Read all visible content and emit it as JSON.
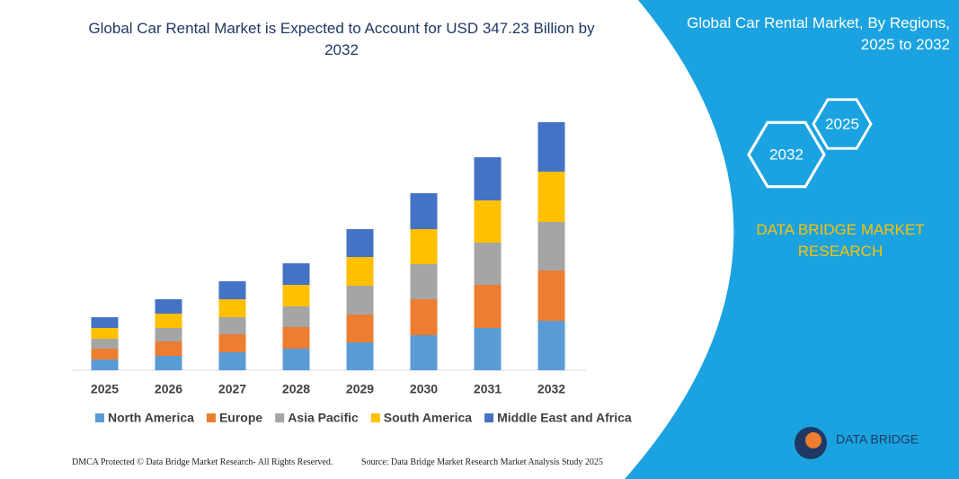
{
  "chart_data": {
    "type": "bar",
    "stacked": true,
    "title": "Global Car Rental Market is Expected to Account for USD 347.23 Billion by 2032",
    "categories": [
      "2025",
      "2026",
      "2027",
      "2028",
      "2029",
      "2030",
      "2031",
      "2032"
    ],
    "series": [
      {
        "name": "North America",
        "color": "#5b9bd5",
        "values": [
          12,
          16,
          20,
          24,
          31,
          39,
          47,
          55
        ]
      },
      {
        "name": "Europe",
        "color": "#ed7d31",
        "values": [
          12,
          16,
          20,
          24,
          31,
          40,
          48,
          56
        ]
      },
      {
        "name": "Asia Pacific",
        "color": "#a5a5a5",
        "values": [
          11,
          15,
          19,
          23,
          32,
          39,
          47,
          54
        ]
      },
      {
        "name": "South America",
        "color": "#ffc000",
        "values": [
          12,
          16,
          20,
          24,
          32,
          39,
          47,
          56
        ]
      },
      {
        "name": "Middle East and Africa",
        "color": "#4472c4",
        "values": [
          12,
          16,
          20,
          24,
          31,
          40,
          48,
          55
        ]
      }
    ],
    "legend": "bottom"
  },
  "side_panel": {
    "title": "Global Car Rental Market, By Regions, 2025 to 2032",
    "hexagons": [
      "2025",
      "2032"
    ],
    "brand": "DATA BRIDGE MARKET RESEARCH"
  },
  "footer": {
    "left": "DMCA Protected © Data Bridge Market Research- All Rights Reserved.",
    "right": "Source: Data Bridge Market Research  Market Analysis Study 2025"
  },
  "logo": {
    "text": "DATA BRIDGE"
  }
}
